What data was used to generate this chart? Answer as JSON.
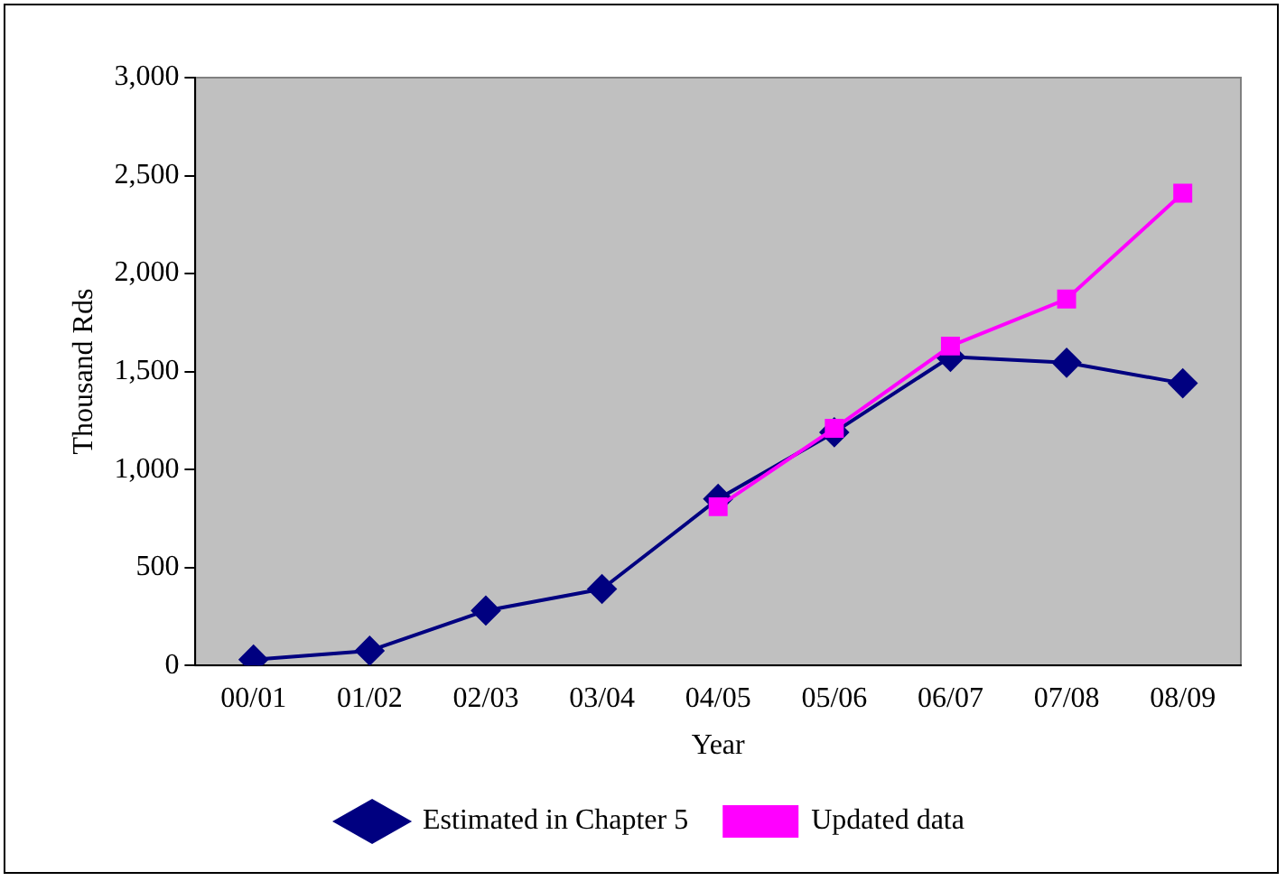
{
  "chart_data": {
    "type": "line",
    "xlabel": "Year",
    "ylabel": "Thousand Rds",
    "categories": [
      "00/01",
      "01/02",
      "02/03",
      "03/04",
      "04/05",
      "05/06",
      "06/07",
      "07/08",
      "08/09"
    ],
    "series": [
      {
        "name": "Estimated in Chapter 5",
        "color": "#000080",
        "marker": "diamond",
        "values": [
          30,
          75,
          280,
          390,
          850,
          1190,
          1575,
          1545,
          1440
        ]
      },
      {
        "name": "Updated data",
        "color": "#ff00ff",
        "marker": "square",
        "values": [
          null,
          null,
          null,
          null,
          810,
          1210,
          1630,
          1870,
          2410
        ]
      }
    ],
    "ylim": [
      0,
      3000
    ],
    "yticks": [
      {
        "value": 0,
        "label": "0"
      },
      {
        "value": 500,
        "label": "500"
      },
      {
        "value": 1000,
        "label": "1,000"
      },
      {
        "value": 1500,
        "label": "1,500"
      },
      {
        "value": 2000,
        "label": "2,000"
      },
      {
        "value": 2500,
        "label": "2,500"
      },
      {
        "value": 3000,
        "label": "3,000"
      }
    ],
    "grid": false,
    "legend": "bottom",
    "line_style": "solid"
  }
}
